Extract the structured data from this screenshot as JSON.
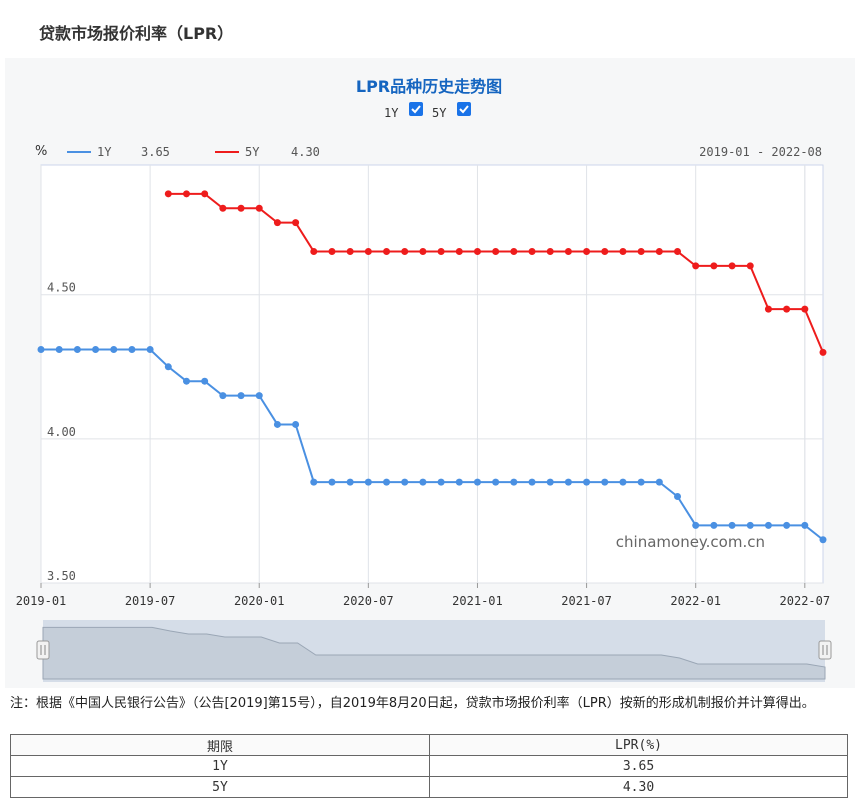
{
  "page_title": "贷款市场报价利率（LPR）",
  "chart_data": {
    "type": "line",
    "title": "LPR品种历史走势图",
    "ylabel": "%",
    "date_range": "2019-01 - 2022-08",
    "watermark": "chinamoney.com.cn",
    "toggles": [
      {
        "label": "1Y",
        "checked": true
      },
      {
        "label": "5Y",
        "checked": true
      }
    ],
    "ylim": [
      3.5,
      4.95
    ],
    "yticks": [
      "4.50",
      "4.00",
      "3.50"
    ],
    "xticks": [
      "2019-01",
      "2019-07",
      "2020-01",
      "2020-07",
      "2021-01",
      "2021-07",
      "2022-01",
      "2022-07"
    ],
    "grid": true,
    "legend_position": "top-left",
    "series": [
      {
        "name": "1Y",
        "latest": "3.65",
        "color": "#4a90e2",
        "x": [
          "2019-01",
          "2019-02",
          "2019-03",
          "2019-04",
          "2019-05",
          "2019-06",
          "2019-07",
          "2019-08",
          "2019-09",
          "2019-10",
          "2019-11",
          "2019-12",
          "2020-01",
          "2020-02",
          "2020-03",
          "2020-04",
          "2020-05",
          "2020-06",
          "2020-07",
          "2020-08",
          "2020-09",
          "2020-10",
          "2020-11",
          "2020-12",
          "2021-01",
          "2021-02",
          "2021-03",
          "2021-04",
          "2021-05",
          "2021-06",
          "2021-07",
          "2021-08",
          "2021-09",
          "2021-10",
          "2021-11",
          "2021-12",
          "2022-01",
          "2022-02",
          "2022-03",
          "2022-04",
          "2022-05",
          "2022-06",
          "2022-07",
          "2022-08"
        ],
        "values": [
          4.31,
          4.31,
          4.31,
          4.31,
          4.31,
          4.31,
          4.31,
          4.25,
          4.2,
          4.2,
          4.15,
          4.15,
          4.15,
          4.05,
          4.05,
          3.85,
          3.85,
          3.85,
          3.85,
          3.85,
          3.85,
          3.85,
          3.85,
          3.85,
          3.85,
          3.85,
          3.85,
          3.85,
          3.85,
          3.85,
          3.85,
          3.85,
          3.85,
          3.85,
          3.85,
          3.8,
          3.7,
          3.7,
          3.7,
          3.7,
          3.7,
          3.7,
          3.7,
          3.65
        ]
      },
      {
        "name": "5Y",
        "latest": "4.30",
        "color": "#ee1c1c",
        "x": [
          "2019-08",
          "2019-09",
          "2019-10",
          "2019-11",
          "2019-12",
          "2020-01",
          "2020-02",
          "2020-03",
          "2020-04",
          "2020-05",
          "2020-06",
          "2020-07",
          "2020-08",
          "2020-09",
          "2020-10",
          "2020-11",
          "2020-12",
          "2021-01",
          "2021-02",
          "2021-03",
          "2021-04",
          "2021-05",
          "2021-06",
          "2021-07",
          "2021-08",
          "2021-09",
          "2021-10",
          "2021-11",
          "2021-12",
          "2022-01",
          "2022-02",
          "2022-03",
          "2022-04",
          "2022-05",
          "2022-06",
          "2022-07",
          "2022-08"
        ],
        "values": [
          4.85,
          4.85,
          4.85,
          4.8,
          4.8,
          4.8,
          4.75,
          4.75,
          4.65,
          4.65,
          4.65,
          4.65,
          4.65,
          4.65,
          4.65,
          4.65,
          4.65,
          4.65,
          4.65,
          4.65,
          4.65,
          4.65,
          4.65,
          4.65,
          4.65,
          4.65,
          4.65,
          4.65,
          4.65,
          4.6,
          4.6,
          4.6,
          4.6,
          4.45,
          4.45,
          4.45,
          4.3
        ]
      }
    ]
  },
  "note": "注：根据《中国人民银行公告》（公告[2019]第15号），自2019年8月20日起，贷款市场报价利率（LPR）按新的形成机制报价并计算得出。",
  "table": {
    "headers": [
      "期限",
      "LPR(%)"
    ],
    "rows": [
      [
        "1Y",
        "3.65"
      ],
      [
        "5Y",
        "4.30"
      ]
    ]
  }
}
